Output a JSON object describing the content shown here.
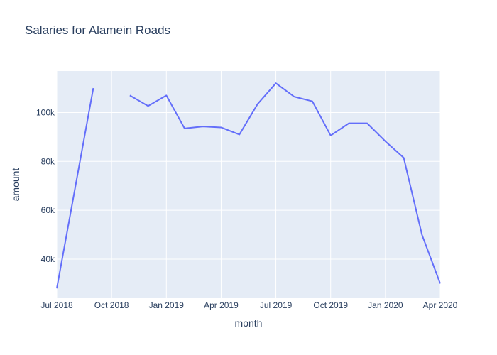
{
  "chart_data": {
    "type": "line",
    "title": "Salaries for Alamein Roads",
    "xlabel": "month",
    "ylabel": "amount",
    "x": [
      "2018-07",
      "2018-08",
      "2018-09",
      "2018-10",
      "2018-11",
      "2018-12",
      "2019-01",
      "2019-02",
      "2019-03",
      "2019-04",
      "2019-05",
      "2019-06",
      "2019-07",
      "2019-08",
      "2019-09",
      "2019-10",
      "2019-11",
      "2019-12",
      "2020-01",
      "2020-02",
      "2020-03",
      "2020-04"
    ],
    "series": [
      {
        "values": [
          28000,
          69000,
          110000,
          null,
          107000,
          102700,
          107000,
          93500,
          94300,
          93900,
          91000,
          103500,
          112000,
          106500,
          104600,
          90600,
          95600,
          95600,
          88200,
          81500,
          50000,
          30000
        ],
        "color": "#636efa"
      }
    ],
    "xlim": [
      "2018-07",
      "2020-04"
    ],
    "ylim": [
      24000,
      117000
    ],
    "x_ticks": [
      {
        "value": "2018-07",
        "label": "Jul 2018"
      },
      {
        "value": "2018-10",
        "label": "Oct 2018"
      },
      {
        "value": "2019-01",
        "label": "Jan 2019"
      },
      {
        "value": "2019-04",
        "label": "Apr 2019"
      },
      {
        "value": "2019-07",
        "label": "Jul 2019"
      },
      {
        "value": "2019-10",
        "label": "Oct 2019"
      },
      {
        "value": "2020-01",
        "label": "Jan 2020"
      },
      {
        "value": "2020-04",
        "label": "Apr 2020"
      }
    ],
    "y_ticks": [
      {
        "value": 40000,
        "label": "40k"
      },
      {
        "value": 60000,
        "label": "60k"
      },
      {
        "value": 80000,
        "label": "80k"
      },
      {
        "value": 100000,
        "label": "100k"
      }
    ],
    "grid": true,
    "plot_background": "#e5ecf6"
  }
}
